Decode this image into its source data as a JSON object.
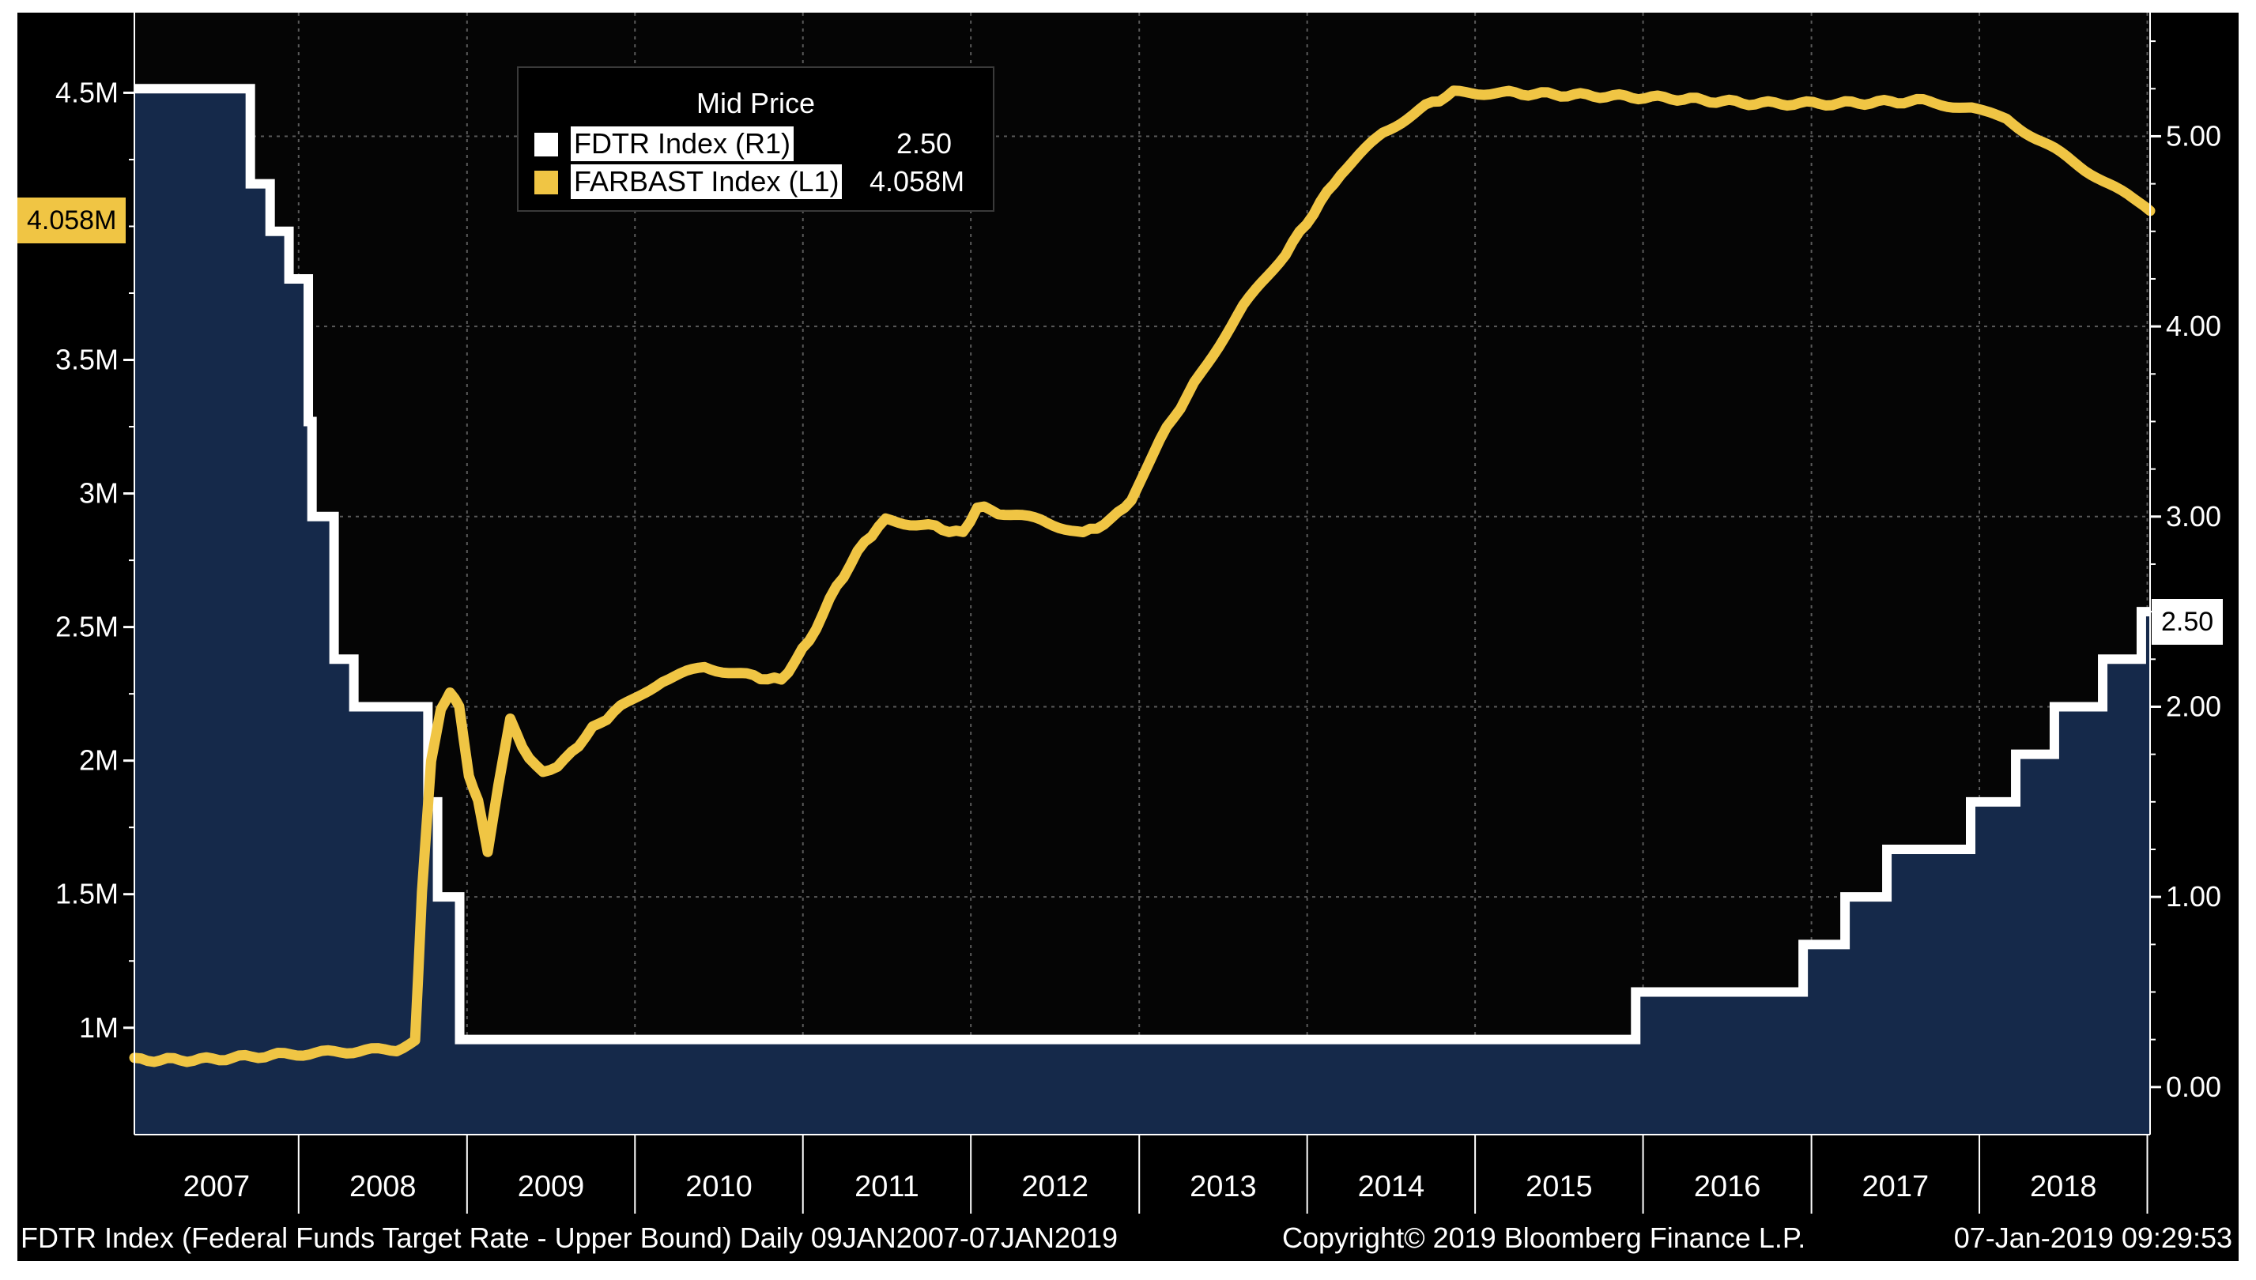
{
  "chart_data": {
    "type": "line",
    "x_range": [
      "2007-01-09",
      "2019-01-07"
    ],
    "x_ticks": [
      "2007",
      "2008",
      "2009",
      "2010",
      "2011",
      "2012",
      "2013",
      "2014",
      "2015",
      "2016",
      "2017",
      "2018"
    ],
    "y_left": {
      "range": [
        0.6,
        4.8
      ],
      "unit": "M",
      "ticks": [
        {
          "v": 1,
          "label": "1M"
        },
        {
          "v": 1.5,
          "label": "1.5M"
        },
        {
          "v": 2,
          "label": "2M"
        },
        {
          "v": 2.5,
          "label": "2.5M"
        },
        {
          "v": 3,
          "label": "3M"
        },
        {
          "v": 3.5,
          "label": "3.5M"
        },
        {
          "v": 4.5,
          "label": "4.5M"
        }
      ]
    },
    "y_right": {
      "range": [
        -0.25,
        5.65
      ],
      "ticks": [
        {
          "v": 0,
          "label": "0.00"
        },
        {
          "v": 1,
          "label": "1.00"
        },
        {
          "v": 2,
          "label": "2.00"
        },
        {
          "v": 3,
          "label": "3.00"
        },
        {
          "v": 4,
          "label": "4.00"
        },
        {
          "v": 5,
          "label": "5.00"
        }
      ]
    },
    "legend_title": "Mid Price",
    "series": [
      {
        "name": "FDTR Index  (R1)",
        "axis": "right",
        "type": "step-area",
        "last_label": "2.50",
        "color": "#ffffff",
        "fill": "#15294a",
        "points": [
          [
            "2007-01-09",
            5.25
          ],
          [
            "2007-09-18",
            4.75
          ],
          [
            "2007-10-31",
            4.5
          ],
          [
            "2007-12-11",
            4.25
          ],
          [
            "2008-01-22",
            3.5
          ],
          [
            "2008-01-30",
            3.0
          ],
          [
            "2008-03-18",
            2.25
          ],
          [
            "2008-04-30",
            2.0
          ],
          [
            "2008-10-08",
            1.5
          ],
          [
            "2008-10-29",
            1.0
          ],
          [
            "2008-12-16",
            0.25
          ],
          [
            "2015-12-16",
            0.5
          ],
          [
            "2016-12-14",
            0.75
          ],
          [
            "2017-03-15",
            1.0
          ],
          [
            "2017-06-14",
            1.25
          ],
          [
            "2017-12-13",
            1.5
          ],
          [
            "2018-03-21",
            1.75
          ],
          [
            "2018-06-13",
            2.0
          ],
          [
            "2018-09-26",
            2.25
          ],
          [
            "2018-12-19",
            2.5
          ],
          [
            "2019-01-07",
            2.5
          ]
        ]
      },
      {
        "name": "FARBAST Index  (L1)",
        "axis": "left",
        "type": "line",
        "last_label": "4.058M",
        "color": "#f0c544",
        "points": [
          [
            "2007-01-09",
            0.88
          ],
          [
            "2007-06-01",
            0.88
          ],
          [
            "2007-12-01",
            0.9
          ],
          [
            "2008-08-01",
            0.92
          ],
          [
            "2008-09-10",
            0.95
          ],
          [
            "2008-09-25",
            1.5
          ],
          [
            "2008-10-15",
            2.0
          ],
          [
            "2008-11-05",
            2.2
          ],
          [
            "2008-11-25",
            2.25
          ],
          [
            "2008-12-15",
            2.2
          ],
          [
            "2009-01-05",
            1.95
          ],
          [
            "2009-01-25",
            1.85
          ],
          [
            "2009-02-15",
            1.65
          ],
          [
            "2009-03-10",
            1.9
          ],
          [
            "2009-04-05",
            2.15
          ],
          [
            "2009-05-01",
            2.05
          ],
          [
            "2009-06-15",
            1.95
          ],
          [
            "2009-08-01",
            2.0
          ],
          [
            "2009-10-01",
            2.12
          ],
          [
            "2009-12-01",
            2.2
          ],
          [
            "2010-03-01",
            2.3
          ],
          [
            "2010-06-01",
            2.35
          ],
          [
            "2010-09-01",
            2.32
          ],
          [
            "2010-11-15",
            2.3
          ],
          [
            "2011-01-15",
            2.45
          ],
          [
            "2011-03-15",
            2.65
          ],
          [
            "2011-05-15",
            2.82
          ],
          [
            "2011-06-30",
            2.9
          ],
          [
            "2011-10-01",
            2.88
          ],
          [
            "2011-12-15",
            2.85
          ],
          [
            "2012-01-15",
            2.95
          ],
          [
            "2012-03-01",
            2.93
          ],
          [
            "2012-06-01",
            2.9
          ],
          [
            "2012-09-01",
            2.85
          ],
          [
            "2012-11-01",
            2.9
          ],
          [
            "2012-12-15",
            2.98
          ],
          [
            "2013-02-15",
            3.2
          ],
          [
            "2013-05-15",
            3.45
          ],
          [
            "2013-08-15",
            3.7
          ],
          [
            "2013-11-15",
            3.9
          ],
          [
            "2014-01-15",
            4.05
          ],
          [
            "2014-03-15",
            4.2
          ],
          [
            "2014-06-15",
            4.35
          ],
          [
            "2014-09-15",
            4.45
          ],
          [
            "2014-11-15",
            4.5
          ],
          [
            "2015-03-01",
            4.5
          ],
          [
            "2015-09-01",
            4.49
          ],
          [
            "2016-03-01",
            4.48
          ],
          [
            "2016-09-01",
            4.46
          ],
          [
            "2017-03-01",
            4.46
          ],
          [
            "2017-09-01",
            4.47
          ],
          [
            "2017-12-15",
            4.44
          ],
          [
            "2018-03-01",
            4.4
          ],
          [
            "2018-06-01",
            4.3
          ],
          [
            "2018-09-01",
            4.2
          ],
          [
            "2018-12-01",
            4.1
          ],
          [
            "2019-01-07",
            4.058
          ]
        ]
      }
    ]
  },
  "legend": {
    "title": "Mid Price",
    "items": [
      {
        "name": "FDTR Index  (R1)",
        "value": "2.50",
        "color": "#ffffff"
      },
      {
        "name": "FARBAST Index  (L1)",
        "value": "4.058M",
        "color": "#f0c544"
      }
    ]
  },
  "flags": {
    "left": "4.058M",
    "right": "2.50"
  },
  "footer": {
    "left": "FDTR Index (Federal Funds Target Rate - Upper Bound)  Daily 09JAN2007-07JAN2019",
    "center": "Copyright© 2019 Bloomberg Finance L.P.",
    "right": "07-Jan-2019 09:29:53"
  }
}
